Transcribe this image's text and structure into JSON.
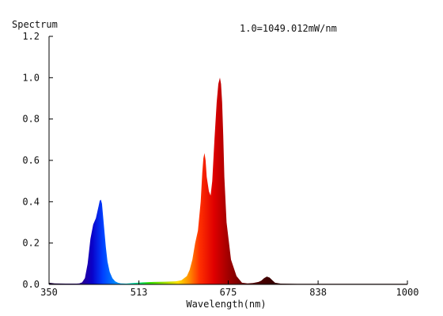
{
  "chart_data": {
    "type": "area",
    "ylabel": "Spectrum",
    "xlabel": "Wavelength(nm)",
    "annotation": "1.0=1049.012mW/nm",
    "xlim": [
      350,
      1000
    ],
    "ylim": [
      0,
      1.2
    ],
    "xticks": [
      "350",
      "513",
      "675",
      "838",
      "1000"
    ],
    "yticks": [
      "0.0",
      "0.2",
      "0.4",
      "0.6",
      "0.8",
      "1.0",
      "1.2"
    ],
    "grid": false,
    "series": [
      {
        "x": [
          350,
          360,
          380,
          400,
          405,
          410,
          415,
          420,
          425,
          430,
          435,
          440,
          442,
          444,
          446,
          448,
          450,
          453,
          456,
          460,
          465,
          470,
          475,
          480,
          490,
          500,
          520,
          540,
          560,
          580,
          590,
          600,
          605,
          610,
          615,
          620,
          625,
          628,
          630,
          632,
          634,
          636,
          640,
          643,
          646,
          650,
          654,
          657,
          660,
          662,
          664,
          666,
          668,
          672,
          680,
          690,
          700,
          710,
          720,
          730,
          735,
          740,
          745,
          750,
          755,
          760,
          770,
          800,
          850,
          900,
          950,
          1000
        ],
        "y": [
          0.008,
          0.005,
          0.004,
          0.004,
          0.005,
          0.01,
          0.03,
          0.1,
          0.22,
          0.29,
          0.32,
          0.38,
          0.405,
          0.41,
          0.39,
          0.33,
          0.27,
          0.18,
          0.11,
          0.06,
          0.03,
          0.015,
          0.008,
          0.005,
          0.004,
          0.006,
          0.01,
          0.012,
          0.013,
          0.015,
          0.02,
          0.04,
          0.07,
          0.12,
          0.2,
          0.26,
          0.4,
          0.54,
          0.61,
          0.635,
          0.6,
          0.52,
          0.45,
          0.43,
          0.5,
          0.7,
          0.88,
          0.97,
          1.0,
          0.97,
          0.88,
          0.72,
          0.52,
          0.3,
          0.12,
          0.04,
          0.008,
          0.005,
          0.007,
          0.012,
          0.018,
          0.03,
          0.038,
          0.033,
          0.02,
          0.008,
          0.004,
          0.003,
          0.003,
          0.003,
          0.003,
          0.003
        ]
      }
    ]
  }
}
